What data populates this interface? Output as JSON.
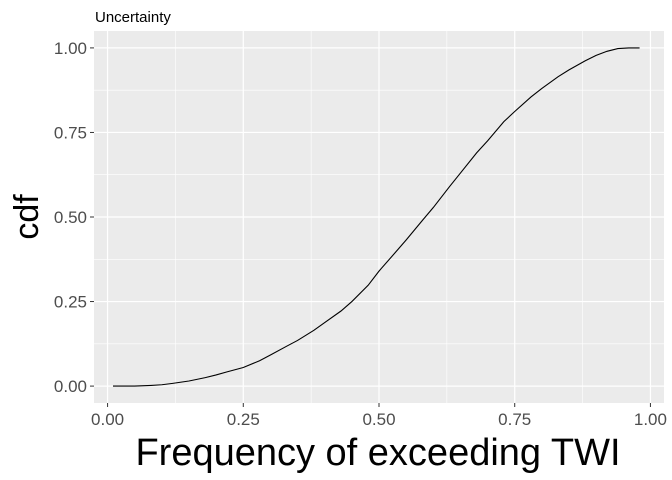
{
  "chart_data": {
    "type": "line",
    "title": "Uncertainty",
    "xlabel": "Frequency of exceeding TWI",
    "ylabel": "cdf",
    "xlim": [
      -0.025,
      1.025
    ],
    "ylim": [
      -0.05,
      1.05
    ],
    "x_ticks": [
      0.0,
      0.25,
      0.5,
      0.75,
      1.0
    ],
    "x_tick_labels": [
      "0.00",
      "0.25",
      "0.50",
      "0.75",
      "1.00"
    ],
    "y_ticks": [
      0.0,
      0.25,
      0.5,
      0.75,
      1.0
    ],
    "y_tick_labels": [
      "0.00",
      "0.25",
      "0.50",
      "0.75",
      "1.00"
    ],
    "grid": true,
    "legend": "none",
    "colors": {
      "panel": "#EBEBEB",
      "grid": "#FFFFFF",
      "line": "#000000"
    },
    "series": [
      {
        "x": [
          0.01,
          0.05,
          0.08,
          0.1,
          0.12,
          0.15,
          0.18,
          0.2,
          0.22,
          0.25,
          0.28,
          0.3,
          0.33,
          0.35,
          0.38,
          0.4,
          0.43,
          0.45,
          0.48,
          0.5,
          0.53,
          0.55,
          0.58,
          0.6,
          0.63,
          0.65,
          0.68,
          0.7,
          0.73,
          0.75,
          0.78,
          0.8,
          0.83,
          0.85,
          0.88,
          0.9,
          0.92,
          0.94,
          0.96,
          0.98
        ],
        "y": [
          0.0,
          0.0,
          0.002,
          0.004,
          0.008,
          0.015,
          0.025,
          0.033,
          0.042,
          0.055,
          0.075,
          0.092,
          0.118,
          0.135,
          0.165,
          0.188,
          0.222,
          0.25,
          0.298,
          0.34,
          0.395,
          0.432,
          0.49,
          0.528,
          0.59,
          0.63,
          0.69,
          0.725,
          0.782,
          0.812,
          0.855,
          0.88,
          0.915,
          0.935,
          0.962,
          0.978,
          0.99,
          0.998,
          1.0,
          1.0
        ]
      }
    ]
  }
}
